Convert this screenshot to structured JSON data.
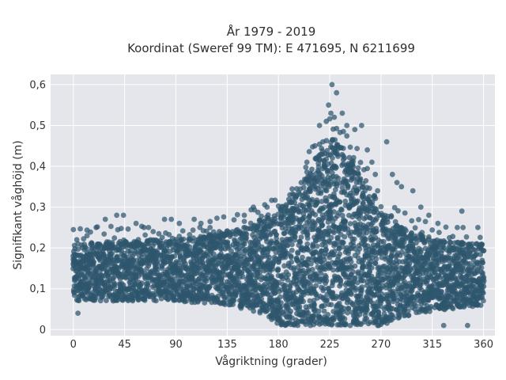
{
  "chart_data": {
    "type": "scatter",
    "title": "År 1979 - 2019",
    "subtitle": "Koordinat (Sweref 99 TM): E 471695, N 6211699",
    "xlabel": "Vågriktning (grader)",
    "ylabel": "Signifikant våghöjd (m)",
    "xlim": [
      -20,
      370
    ],
    "ylim": [
      -0.015,
      0.625
    ],
    "x_ticks": [
      0,
      45,
      90,
      135,
      180,
      225,
      270,
      315,
      360
    ],
    "x_tick_labels": [
      "0",
      "45",
      "90",
      "135",
      "180",
      "225",
      "270",
      "315",
      "360"
    ],
    "y_ticks": [
      0,
      0.1,
      0.2,
      0.3,
      0.4,
      0.5,
      0.6
    ],
    "y_tick_labels": [
      "0",
      "0,1",
      "0,2",
      "0,3",
      "0,4",
      "0,5",
      "0,6"
    ],
    "grid": true,
    "legend": "none",
    "series": [
      {
        "band_upper": [
          {
            "x": 0,
            "y": 0.21
          },
          {
            "x": 45,
            "y": 0.22
          },
          {
            "x": 90,
            "y": 0.22
          },
          {
            "x": 135,
            "y": 0.24
          },
          {
            "x": 165,
            "y": 0.27
          },
          {
            "x": 180,
            "y": 0.29
          },
          {
            "x": 200,
            "y": 0.36
          },
          {
            "x": 215,
            "y": 0.44
          },
          {
            "x": 225,
            "y": 0.48
          },
          {
            "x": 240,
            "y": 0.44
          },
          {
            "x": 255,
            "y": 0.38
          },
          {
            "x": 270,
            "y": 0.3
          },
          {
            "x": 290,
            "y": 0.25
          },
          {
            "x": 315,
            "y": 0.22
          },
          {
            "x": 360,
            "y": 0.21
          }
        ],
        "band_lower": [
          {
            "x": 0,
            "y": 0.07
          },
          {
            "x": 90,
            "y": 0.07
          },
          {
            "x": 135,
            "y": 0.06
          },
          {
            "x": 165,
            "y": 0.04
          },
          {
            "x": 180,
            "y": 0.01
          },
          {
            "x": 270,
            "y": 0.01
          },
          {
            "x": 300,
            "y": 0.04
          },
          {
            "x": 360,
            "y": 0.06
          }
        ],
        "outliers": [
          {
            "x": 4,
            "y": 0.04
          },
          {
            "x": 12,
            "y": 0.23
          },
          {
            "x": 20,
            "y": 0.25
          },
          {
            "x": 28,
            "y": 0.27
          },
          {
            "x": 38,
            "y": 0.28
          },
          {
            "x": 44,
            "y": 0.28
          },
          {
            "x": 55,
            "y": 0.26
          },
          {
            "x": 62,
            "y": 0.25
          },
          {
            "x": 70,
            "y": 0.24
          },
          {
            "x": 80,
            "y": 0.27
          },
          {
            "x": 86,
            "y": 0.27
          },
          {
            "x": 93,
            "y": 0.26
          },
          {
            "x": 106,
            "y": 0.27
          },
          {
            "x": 112,
            "y": 0.26
          },
          {
            "x": 120,
            "y": 0.25
          },
          {
            "x": 128,
            "y": 0.24
          },
          {
            "x": 150,
            "y": 0.28
          },
          {
            "x": 158,
            "y": 0.3
          },
          {
            "x": 170,
            "y": 0.3
          },
          {
            "x": 190,
            "y": 0.33
          },
          {
            "x": 200,
            "y": 0.36
          },
          {
            "x": 205,
            "y": 0.41
          },
          {
            "x": 212,
            "y": 0.45
          },
          {
            "x": 216,
            "y": 0.5
          },
          {
            "x": 219,
            "y": 0.46
          },
          {
            "x": 222,
            "y": 0.51
          },
          {
            "x": 224,
            "y": 0.55
          },
          {
            "x": 226,
            "y": 0.53
          },
          {
            "x": 227,
            "y": 0.6
          },
          {
            "x": 229,
            "y": 0.52
          },
          {
            "x": 231,
            "y": 0.58
          },
          {
            "x": 236,
            "y": 0.53
          },
          {
            "x": 240,
            "y": 0.5
          },
          {
            "x": 247,
            "y": 0.49
          },
          {
            "x": 253,
            "y": 0.5
          },
          {
            "x": 258,
            "y": 0.44
          },
          {
            "x": 262,
            "y": 0.41
          },
          {
            "x": 265,
            "y": 0.38
          },
          {
            "x": 275,
            "y": 0.46
          },
          {
            "x": 280,
            "y": 0.38
          },
          {
            "x": 284,
            "y": 0.36
          },
          {
            "x": 288,
            "y": 0.35
          },
          {
            "x": 298,
            "y": 0.34
          },
          {
            "x": 305,
            "y": 0.3
          },
          {
            "x": 312,
            "y": 0.28
          },
          {
            "x": 320,
            "y": 0.26
          },
          {
            "x": 337,
            "y": 0.25
          },
          {
            "x": 341,
            "y": 0.29
          },
          {
            "x": 355,
            "y": 0.25
          },
          {
            "x": 325,
            "y": 0.01
          },
          {
            "x": 346,
            "y": 0.01
          },
          {
            "x": 208,
            "y": 0.01
          },
          {
            "x": 243,
            "y": 0.01
          },
          {
            "x": 268,
            "y": 0.01
          }
        ]
      }
    ]
  },
  "colors": {
    "marker": "#2e566d",
    "plot_background": "#e5e5ec",
    "grid": "#ffffff"
  }
}
